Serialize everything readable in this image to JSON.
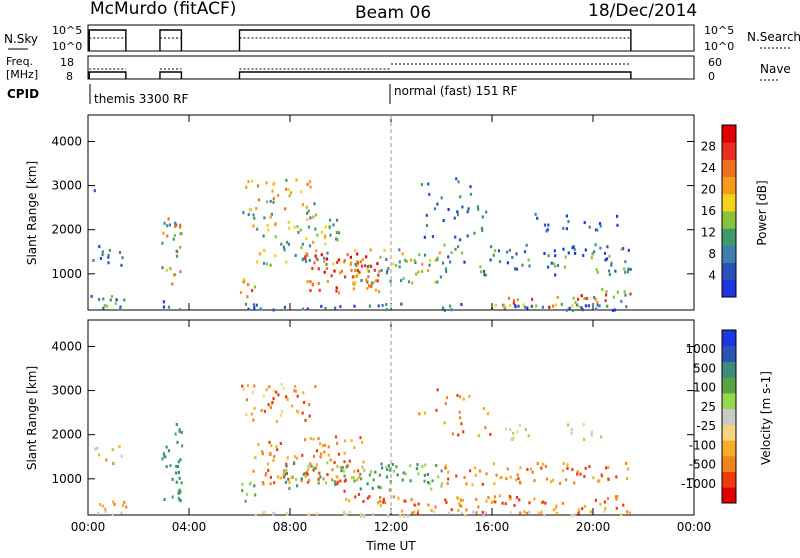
{
  "header": {
    "station": "McMurdo (fitACF)",
    "beam": "Beam 06",
    "date": "18/Dec/2014"
  },
  "top_panels": {
    "nsky_label": "N.Sky",
    "nsky_ticks": [
      "10^5",
      "10^0"
    ],
    "nsearch_label": "N.Search",
    "nsearch_ticks": [
      "10^5",
      "10^0"
    ],
    "freq_label_1": "Freq.",
    "freq_label_2": "[MHz]",
    "freq_ticks": [
      "18",
      "8"
    ],
    "nave_label": "Nave",
    "nave_ticks": [
      "60",
      "0"
    ],
    "cpid_label": "CPID",
    "cpid_1": "themis 3300 RF",
    "cpid_2": "normal (fast) 151 RF"
  },
  "chart_data": [
    {
      "type": "heatmap",
      "name": "Power",
      "ylabel": "Slant Range [km]",
      "yticks": [
        1000,
        2000,
        3000,
        4000
      ],
      "ylim": [
        180,
        4600
      ],
      "xlim": [
        0,
        24
      ],
      "colorbar_label": "Power [dB]",
      "colorbar_ticks": [
        "4",
        "8",
        "12",
        "16",
        "20",
        "24",
        "28"
      ],
      "colors": [
        "#1f35e0",
        "#2b50b8",
        "#3f7fb0",
        "#3e9a6a",
        "#86c23a",
        "#f2d21a",
        "#f59a1a",
        "#f07020",
        "#e83020",
        "#e00000"
      ]
    },
    {
      "type": "heatmap",
      "name": "Velocity",
      "ylabel": "Slant Range [km]",
      "xlabel": "Time UT",
      "yticks": [
        1000,
        2000,
        3000,
        4000
      ],
      "ylim": [
        180,
        4600
      ],
      "xlim": [
        0,
        24
      ],
      "xticks": [
        "00:00",
        "04:00",
        "08:00",
        "12:00",
        "16:00",
        "20:00",
        "00:00"
      ],
      "colorbar_label": "Velocity [m s-1]",
      "colorbar_ticks": [
        "-1000",
        "-500",
        "-100",
        "-25",
        "25",
        "100",
        "500",
        "1000"
      ],
      "colors": [
        "#e00000",
        "#ee3a10",
        "#f3821e",
        "#f6ad27",
        "#f7d37e",
        "#c9c9c9",
        "#99d650",
        "#56a446",
        "#3d8d7e",
        "#2c54b3",
        "#1f35e0"
      ]
    }
  ]
}
